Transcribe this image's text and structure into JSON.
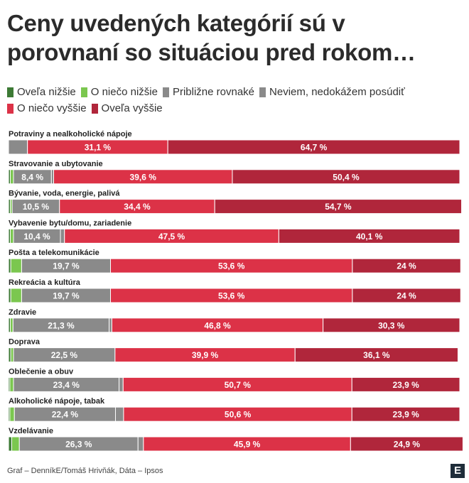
{
  "title": "Ceny uvedených kategórií sú v porovnaní so situáciou pred rokom…",
  "legend": [
    {
      "label": "Oveľa nižšie",
      "color": "#3d7a35"
    },
    {
      "label": "O niečo nižšie",
      "color": "#7bc74f"
    },
    {
      "label": "Približne rovnaké",
      "color": "#8a8a8a"
    },
    {
      "label": "Neviem, nedokážem posúdiť",
      "color": "#8a8a8a"
    },
    {
      "label": "O niečo vyššie",
      "color": "#dc3247"
    },
    {
      "label": "Oveľa vyššie",
      "color": "#b0263b"
    }
  ],
  "chart_data": {
    "type": "bar",
    "orientation": "horizontal",
    "stacked": true,
    "unit": "%",
    "categories": [
      "Potraviny a nealkoholické nápoje",
      "Stravovanie a ubytovanie",
      "Bývanie, voda, energie, palivá",
      "Vybavenie bytu/domu, zariadenie",
      "Pošta a telekomunikácie",
      "Rekreácia a kultúra",
      "Zdravie",
      "Doprava",
      "Oblečenie a obuv",
      "Alkoholické nápoje, tabak",
      "Vzdelávanie"
    ],
    "series": [
      {
        "name": "Oveľa nižšie",
        "color": "#3d7a35",
        "values": [
          0,
          0.4,
          0.4,
          0.4,
          0.5,
          0.5,
          0.4,
          0.5,
          0.3,
          0.3,
          0.7
        ]
      },
      {
        "name": "O niečo nižšie",
        "color": "#7bc74f",
        "values": [
          0,
          0.7,
          0.4,
          0.7,
          2.4,
          2.4,
          0.6,
          0.6,
          0.8,
          1.0,
          1.7
        ]
      },
      {
        "name": "Približne rovnaké",
        "color": "#8a8a8a",
        "values": [
          4.2,
          8.4,
          10.5,
          10.4,
          19.7,
          19.7,
          21.3,
          22.5,
          23.4,
          22.4,
          26.3
        ]
      },
      {
        "name": "Neviem, nedokážem posúdiť",
        "color": "#8a8a8a",
        "values": [
          0,
          0.5,
          0,
          0.9,
          0,
          0,
          0.6,
          0,
          0.9,
          1.8,
          1.2
        ]
      },
      {
        "name": "O niečo vyššie",
        "color": "#dc3247",
        "values": [
          31.1,
          39.6,
          34.4,
          47.5,
          53.6,
          53.6,
          46.8,
          39.9,
          50.7,
          50.6,
          45.9
        ]
      },
      {
        "name": "Oveľa vyššie",
        "color": "#b0263b",
        "values": [
          64.7,
          50.4,
          54.7,
          40.1,
          24,
          24,
          30.3,
          36.1,
          23.9,
          23.9,
          24.9
        ]
      }
    ],
    "labels": [
      [
        null,
        null,
        null,
        null,
        "31,1 %",
        "64,7 %"
      ],
      [
        null,
        null,
        "8,4 %",
        null,
        "39,6 %",
        "50,4 %"
      ],
      [
        null,
        null,
        "10,5 %",
        null,
        "34,4 %",
        "54,7 %"
      ],
      [
        null,
        null,
        "10,4 %",
        null,
        "47,5 %",
        "40,1 %"
      ],
      [
        null,
        null,
        "19,7 %",
        null,
        "53,6 %",
        "24 %"
      ],
      [
        null,
        null,
        "19,7 %",
        null,
        "53,6 %",
        "24 %"
      ],
      [
        null,
        null,
        "21,3 %",
        null,
        "46,8 %",
        "30,3 %"
      ],
      [
        null,
        null,
        "22,5 %",
        null,
        "39,9 %",
        "36,1 %"
      ],
      [
        null,
        null,
        "23,4 %",
        null,
        "50,7 %",
        "23,9 %"
      ],
      [
        null,
        null,
        "22,4 %",
        null,
        "50,6 %",
        "23,9 %"
      ],
      [
        null,
        null,
        "26,3 %",
        null,
        "45,9 %",
        "24,9 %"
      ]
    ],
    "xlim": [
      0,
      100
    ],
    "legend_position": "top"
  },
  "footer": "Graf – DenníkE/Tomáš Hrivňák, Dáta – Ipsos",
  "logo_letter": "E"
}
